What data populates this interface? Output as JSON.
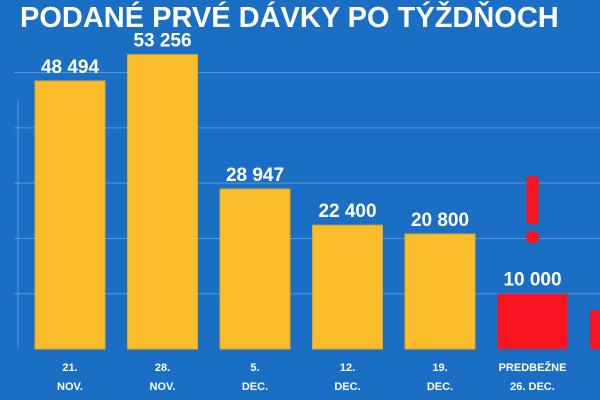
{
  "chart_data": {
    "type": "bar",
    "title": "PODANÉ PRVÉ DÁVKY PO TÝŽDŇOCH",
    "xlabel": "",
    "ylabel": "",
    "ylim": [
      0,
      55000
    ],
    "grid": true,
    "categories": [
      [
        "21.",
        "NOV."
      ],
      [
        "28.",
        "NOV."
      ],
      [
        "5.",
        "DEC."
      ],
      [
        "12.",
        "DEC."
      ],
      [
        "19.",
        "DEC."
      ],
      [
        "PREDBEŽNE",
        "26. DEC."
      ],
      [
        "",
        ""
      ]
    ],
    "values": [
      48494,
      53256,
      28947,
      22400,
      20800,
      10000,
      7000
    ],
    "data_labels": [
      "48 494",
      "53 256",
      "28 947",
      "22 400",
      "20 800",
      "10 000",
      ""
    ],
    "annotations": [
      "!"
    ],
    "colors": {
      "background": "#1a6fc4",
      "bar": "#fbbd2c",
      "bar_highlight": "#f5141f",
      "text": "#ffffff",
      "grid": "#5b97d6",
      "exclamation": "#f5141f"
    },
    "highlight_indices": [
      5,
      6
    ]
  }
}
